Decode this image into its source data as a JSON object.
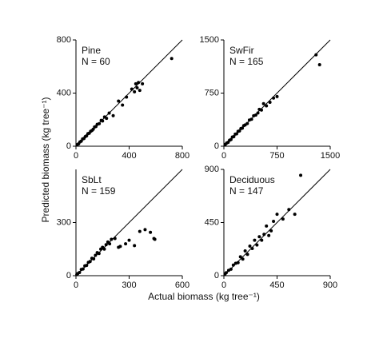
{
  "ylabel": "Predicted biomass (kg tree⁻¹)",
  "xlabel": "Actual biomass (kg tree⁻¹)",
  "chart_data": [
    {
      "type": "scatter",
      "title": "Pine",
      "annotation": "N = 60",
      "color": "#000000",
      "xlim": [
        0,
        800
      ],
      "ylim": [
        0,
        800
      ],
      "xticks": [
        0,
        400,
        800
      ],
      "yticks": [
        0,
        400,
        800
      ],
      "x": [
        10,
        20,
        30,
        40,
        50,
        60,
        70,
        80,
        90,
        100,
        110,
        120,
        130,
        140,
        150,
        160,
        175,
        190,
        200,
        215,
        230,
        250,
        280,
        320,
        350,
        380,
        420,
        440,
        450,
        460,
        470,
        480,
        500,
        720
      ],
      "values": [
        12,
        18,
        32,
        38,
        55,
        58,
        72,
        78,
        95,
        98,
        112,
        118,
        128,
        145,
        148,
        165,
        170,
        195,
        190,
        220,
        210,
        250,
        230,
        340,
        310,
        370,
        430,
        410,
        470,
        440,
        480,
        420,
        470,
        660
      ]
    },
    {
      "type": "scatter",
      "title": "SwFir",
      "annotation": "N = 165",
      "color": "#000000",
      "xlim": [
        0,
        1500
      ],
      "ylim": [
        0,
        1500
      ],
      "xticks": [
        0,
        750,
        1500
      ],
      "yticks": [
        0,
        750,
        1500
      ],
      "x": [
        20,
        40,
        60,
        80,
        100,
        120,
        140,
        160,
        180,
        200,
        220,
        240,
        260,
        280,
        300,
        330,
        360,
        390,
        420,
        450,
        480,
        500,
        530,
        560,
        600,
        650,
        700,
        750,
        1300,
        1350
      ],
      "values": [
        25,
        45,
        55,
        85,
        95,
        130,
        135,
        170,
        175,
        210,
        215,
        250,
        255,
        290,
        300,
        320,
        370,
        380,
        430,
        440,
        470,
        520,
        510,
        600,
        570,
        620,
        680,
        700,
        1290,
        1150
      ]
    },
    {
      "type": "scatter",
      "title": "SbLt",
      "annotation": "N = 159",
      "color": "#000000",
      "xlim": [
        0,
        600
      ],
      "ylim": [
        0,
        600
      ],
      "xticks": [
        0,
        300,
        600
      ],
      "yticks": [
        0,
        300
      ],
      "x": [
        5,
        10,
        20,
        30,
        40,
        50,
        60,
        70,
        80,
        90,
        100,
        110,
        120,
        130,
        140,
        150,
        160,
        170,
        180,
        190,
        200,
        220,
        240,
        250,
        280,
        300,
        330,
        360,
        390,
        420,
        440,
        445
      ],
      "values": [
        6,
        12,
        18,
        35,
        38,
        55,
        58,
        75,
        80,
        98,
        95,
        115,
        130,
        125,
        150,
        160,
        150,
        175,
        190,
        180,
        205,
        210,
        160,
        165,
        180,
        200,
        170,
        250,
        260,
        245,
        210,
        205
      ]
    },
    {
      "type": "scatter",
      "title": "Deciduous",
      "annotation": "N = 147",
      "color": "#000000",
      "xlim": [
        0,
        900
      ],
      "ylim": [
        0,
        900
      ],
      "xticks": [
        0,
        450,
        900
      ],
      "yticks": [
        0,
        450,
        900
      ],
      "x": [
        10,
        20,
        40,
        60,
        80,
        100,
        120,
        140,
        160,
        180,
        200,
        220,
        240,
        260,
        280,
        300,
        320,
        340,
        360,
        380,
        400,
        420,
        450,
        500,
        550,
        600,
        650
      ],
      "values": [
        15,
        25,
        45,
        55,
        90,
        105,
        110,
        160,
        140,
        210,
        180,
        250,
        230,
        300,
        260,
        330,
        300,
        350,
        420,
        340,
        380,
        460,
        520,
        480,
        560,
        520,
        850
      ]
    }
  ]
}
